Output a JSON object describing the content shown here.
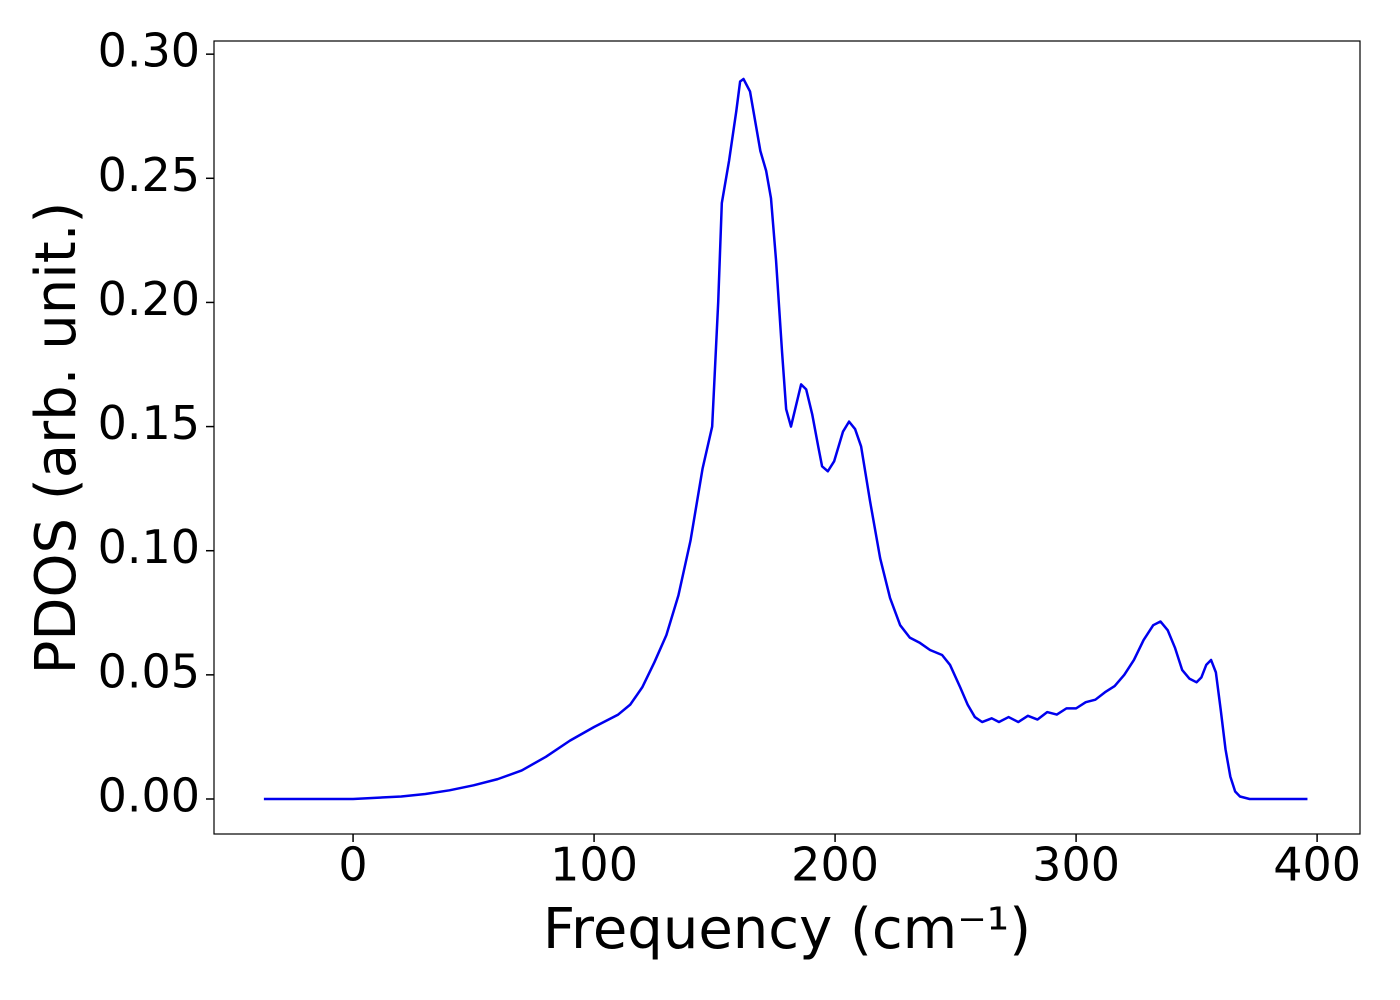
{
  "chart_data": {
    "type": "line",
    "xlabel": "Frequency (cm⁻¹)",
    "ylabel": "PDOS (arb. unit.)",
    "x": [
      -37,
      0,
      10,
      20,
      30,
      40,
      50,
      60,
      70,
      80,
      90,
      100,
      110,
      115,
      120,
      125,
      130,
      135,
      140,
      145,
      149,
      151.5,
      153,
      156,
      159,
      160.6,
      162,
      164.7,
      169,
      171.4,
      173.4,
      175.5,
      178,
      179.7,
      181.7,
      185.9,
      188,
      190.5,
      193,
      194.6,
      197,
      199.6,
      203.3,
      205.8,
      208.3,
      210.8,
      214.5,
      218.7,
      222.8,
      227,
      231,
      235,
      239.4,
      244.4,
      247.7,
      251.9,
      255,
      258,
      261,
      265,
      268,
      272,
      276,
      280,
      284,
      288,
      292,
      296,
      300,
      304,
      308,
      312,
      316,
      320,
      324,
      328,
      332,
      335,
      338,
      341,
      344,
      347,
      350,
      352,
      354,
      356,
      358,
      360,
      362,
      364,
      366,
      368,
      372,
      396
    ],
    "values": [
      0,
      0,
      0.0005,
      0.001,
      0.002,
      0.0035,
      0.0055,
      0.008,
      0.0115,
      0.017,
      0.0235,
      0.029,
      0.034,
      0.038,
      0.045,
      0.055,
      0.066,
      0.082,
      0.104,
      0.133,
      0.15,
      0.2,
      0.24,
      0.257,
      0.277,
      0.289,
      0.29,
      0.285,
      0.261,
      0.253,
      0.242,
      0.217,
      0.18,
      0.157,
      0.15,
      0.167,
      0.165,
      0.155,
      0.142,
      0.134,
      0.132,
      0.136,
      0.148,
      0.152,
      0.149,
      0.142,
      0.12,
      0.097,
      0.081,
      0.07,
      0.065,
      0.063,
      0.06,
      0.058,
      0.054,
      0.045,
      0.038,
      0.033,
      0.031,
      0.0325,
      0.031,
      0.033,
      0.031,
      0.0335,
      0.032,
      0.035,
      0.034,
      0.0365,
      0.0365,
      0.039,
      0.04,
      0.043,
      0.0455,
      0.05,
      0.056,
      0.064,
      0.07,
      0.0715,
      0.068,
      0.061,
      0.052,
      0.0485,
      0.047,
      0.049,
      0.054,
      0.056,
      0.051,
      0.036,
      0.02,
      0.009,
      0.003,
      0.001,
      0,
      0
    ],
    "color": "#0000ee",
    "xlim": [
      -57.7,
      417.8
    ],
    "ylim": [
      -0.0141,
      0.3053
    ],
    "xticks": [
      0,
      100,
      200,
      300,
      400
    ],
    "yticks": [
      {
        "value": 0,
        "label": "0.00"
      },
      {
        "value": 0.05,
        "label": "0.05"
      },
      {
        "value": 0.1,
        "label": "0.10"
      },
      {
        "value": 0.15,
        "label": "0.15"
      },
      {
        "value": 0.2,
        "label": "0.20"
      },
      {
        "value": 0.25,
        "label": "0.25"
      },
      {
        "value": 0.3,
        "label": "0.30"
      }
    ]
  }
}
